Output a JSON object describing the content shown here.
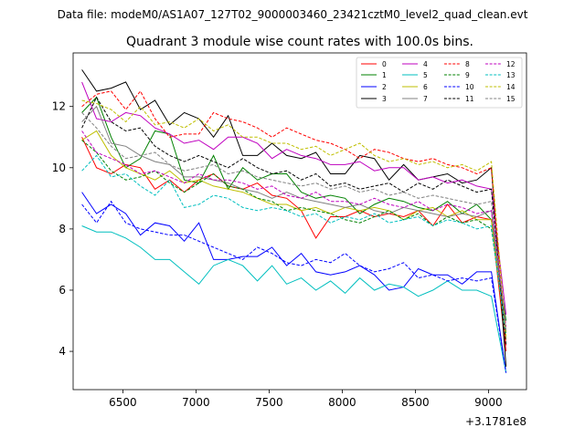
{
  "chart_data": {
    "type": "line",
    "suptitle": "Data file: modeM0/AS1A07_127T02_9000003460_23421cztM0_level2_quad_clean.evt",
    "title": "Quadrant 3 module wise count rates with 100.0s bins.",
    "xlabel": "",
    "ylabel": "",
    "x_offset_label": "+3.1781e8",
    "xlim": [
      6160,
      9260
    ],
    "ylim": [
      2.75,
      13.75
    ],
    "xticks": [
      6500,
      7000,
      7500,
      8000,
      8500,
      9000
    ],
    "yticks": [
      4,
      6,
      8,
      10,
      12
    ],
    "x": [
      6220,
      6320,
      6420,
      6520,
      6620,
      6720,
      6820,
      6920,
      7020,
      7120,
      7220,
      7320,
      7420,
      7520,
      7620,
      7720,
      7820,
      7920,
      8020,
      8120,
      8220,
      8320,
      8420,
      8520,
      8620,
      8720,
      8820,
      8920,
      9020,
      9120
    ],
    "legend_location": "upper right",
    "series": [
      {
        "name": "0",
        "color": "#ff0000",
        "dash": "solid",
        "values": [
          11.0,
          10.0,
          9.8,
          10.1,
          10.0,
          9.3,
          9.6,
          9.2,
          9.6,
          9.8,
          9.4,
          9.3,
          9.5,
          9.1,
          9.0,
          8.6,
          7.7,
          8.4,
          8.4,
          8.6,
          8.4,
          8.5,
          8.4,
          8.6,
          8.1,
          8.8,
          8.2,
          8.4,
          8.3,
          4.0
        ]
      },
      {
        "name": "1",
        "color": "#008000",
        "dash": "solid",
        "values": [
          11.8,
          12.3,
          11.0,
          10.0,
          10.3,
          11.2,
          11.1,
          9.6,
          9.5,
          10.4,
          9.3,
          10.0,
          9.6,
          9.8,
          9.8,
          9.2,
          9.0,
          9.1,
          9.0,
          8.5,
          8.8,
          9.0,
          8.9,
          8.7,
          8.6,
          8.9,
          8.5,
          8.8,
          8.3,
          5.0
        ]
      },
      {
        "name": "2",
        "color": "#0000ff",
        "dash": "solid",
        "values": [
          9.2,
          8.5,
          8.8,
          8.5,
          7.8,
          8.2,
          8.1,
          7.6,
          8.2,
          7.0,
          7.0,
          7.1,
          7.1,
          7.4,
          6.8,
          7.2,
          6.6,
          6.5,
          6.6,
          6.8,
          6.5,
          6.0,
          6.1,
          6.7,
          6.5,
          6.5,
          6.2,
          6.6,
          6.6,
          3.3
        ]
      },
      {
        "name": "3",
        "color": "#000000",
        "dash": "solid",
        "values": [
          13.2,
          12.5,
          12.6,
          12.8,
          11.9,
          12.2,
          11.4,
          11.8,
          11.6,
          11.0,
          11.7,
          10.4,
          10.4,
          10.8,
          10.4,
          10.3,
          10.5,
          9.8,
          9.8,
          10.4,
          10.3,
          9.6,
          10.1,
          9.6,
          9.7,
          9.8,
          9.5,
          9.6,
          10.0,
          3.5
        ]
      },
      {
        "name": "4",
        "color": "#bf00bf",
        "dash": "solid",
        "values": [
          12.8,
          11.6,
          11.5,
          11.8,
          11.7,
          11.3,
          11.1,
          10.8,
          10.9,
          10.6,
          11.0,
          11.0,
          10.8,
          10.3,
          10.6,
          10.4,
          10.3,
          10.1,
          10.1,
          10.2,
          9.9,
          10.0,
          10.0,
          9.6,
          9.7,
          9.5,
          9.6,
          9.4,
          9.3,
          5.2
        ]
      },
      {
        "name": "5",
        "color": "#00bfbf",
        "dash": "solid",
        "values": [
          8.1,
          7.9,
          7.9,
          7.7,
          7.4,
          7.0,
          7.0,
          6.6,
          6.2,
          6.8,
          7.0,
          6.8,
          6.3,
          6.8,
          6.2,
          6.4,
          6.0,
          6.3,
          5.9,
          6.4,
          6.0,
          6.2,
          6.1,
          5.8,
          6.0,
          6.3,
          6.0,
          6.0,
          5.8,
          3.3
        ]
      },
      {
        "name": "6",
        "color": "#bfbf00",
        "dash": "solid",
        "values": [
          10.9,
          11.2,
          10.4,
          10.0,
          9.8,
          9.6,
          9.9,
          9.5,
          9.6,
          9.4,
          9.3,
          9.2,
          9.0,
          8.8,
          8.8,
          8.6,
          8.7,
          8.5,
          8.7,
          8.6,
          8.7,
          8.6,
          8.3,
          8.6,
          8.7,
          8.4,
          8.6,
          8.3,
          8.3,
          4.4
        ]
      },
      {
        "name": "7",
        "color": "#808080",
        "dash": "solid",
        "values": [
          11.5,
          12.0,
          10.8,
          10.7,
          10.4,
          10.2,
          10.1,
          9.7,
          9.7,
          9.6,
          9.5,
          9.3,
          9.2,
          9.0,
          9.2,
          9.0,
          8.9,
          8.8,
          8.7,
          8.8,
          8.6,
          8.5,
          8.7,
          8.6,
          8.5,
          8.4,
          8.5,
          8.4,
          8.6,
          4.6
        ]
      },
      {
        "name": "8",
        "color": "#ff0000",
        "dash": "dashed",
        "values": [
          12.0,
          12.4,
          12.5,
          11.9,
          12.5,
          11.6,
          11.0,
          11.1,
          11.1,
          11.8,
          11.6,
          11.5,
          11.3,
          11.0,
          11.3,
          11.1,
          10.9,
          10.8,
          10.6,
          10.3,
          10.6,
          10.5,
          10.3,
          10.2,
          10.3,
          10.1,
          10.0,
          9.8,
          10.0,
          4.2
        ]
      },
      {
        "name": "9",
        "color": "#008000",
        "dash": "dashed",
        "values": [
          10.9,
          10.5,
          9.9,
          9.6,
          9.7,
          9.9,
          9.5,
          9.2,
          9.5,
          9.8,
          9.4,
          9.3,
          9.0,
          8.9,
          8.6,
          8.7,
          8.6,
          8.5,
          8.3,
          8.2,
          8.4,
          8.6,
          8.3,
          8.5,
          8.1,
          8.4,
          8.2,
          8.3,
          8.0,
          4.6
        ]
      },
      {
        "name": "10",
        "color": "#0000ff",
        "dash": "dashed",
        "values": [
          8.8,
          8.2,
          8.9,
          8.2,
          8.0,
          7.9,
          7.8,
          7.8,
          7.6,
          7.4,
          7.2,
          7.0,
          7.4,
          7.2,
          6.9,
          6.8,
          7.0,
          6.9,
          7.2,
          6.8,
          6.6,
          6.7,
          6.9,
          6.4,
          6.5,
          6.3,
          6.4,
          6.3,
          6.4,
          3.3
        ]
      },
      {
        "name": "11",
        "color": "#000000",
        "dash": "dashed",
        "values": [
          11.3,
          12.3,
          11.5,
          11.2,
          11.3,
          10.7,
          10.4,
          10.2,
          10.4,
          10.2,
          10.0,
          10.3,
          10.0,
          9.8,
          9.9,
          9.6,
          9.8,
          9.4,
          9.5,
          9.3,
          9.4,
          9.5,
          9.2,
          9.5,
          9.3,
          9.6,
          9.4,
          9.2,
          9.3,
          4.2
        ]
      },
      {
        "name": "12",
        "color": "#bf00bf",
        "dash": "dashed",
        "values": [
          11.2,
          10.5,
          10.3,
          10.1,
          9.8,
          9.9,
          9.7,
          9.5,
          9.8,
          9.6,
          9.6,
          9.5,
          9.3,
          9.4,
          9.1,
          9.0,
          9.2,
          8.9,
          8.9,
          8.8,
          9.0,
          8.8,
          8.7,
          8.9,
          8.6,
          8.8,
          8.7,
          8.5,
          8.6,
          4.8
        ]
      },
      {
        "name": "13",
        "color": "#00bfbf",
        "dash": "dashed",
        "values": [
          9.9,
          10.4,
          9.7,
          9.8,
          9.4,
          9.1,
          9.6,
          8.7,
          8.8,
          9.1,
          9.0,
          8.7,
          8.6,
          8.7,
          8.6,
          8.4,
          8.5,
          8.2,
          8.4,
          8.3,
          8.5,
          8.2,
          8.3,
          8.4,
          8.1,
          8.3,
          8.2,
          8.0,
          8.1,
          4.5
        ]
      },
      {
        "name": "14",
        "color": "#bfbf00",
        "dash": "dashed",
        "values": [
          12.2,
          12.1,
          11.9,
          11.5,
          12.0,
          11.4,
          11.5,
          11.3,
          11.6,
          11.2,
          11.4,
          11.0,
          11.0,
          10.8,
          10.8,
          10.6,
          10.7,
          10.4,
          10.6,
          10.8,
          10.4,
          10.2,
          10.3,
          10.1,
          10.2,
          10.0,
          10.1,
          9.9,
          10.2,
          4.5
        ]
      },
      {
        "name": "15",
        "color": "#808080",
        "dash": "dashed",
        "values": [
          11.8,
          11.3,
          10.7,
          10.3,
          10.4,
          10.5,
          10.1,
          9.9,
          10.0,
          10.1,
          9.8,
          9.9,
          9.7,
          9.6,
          9.5,
          9.4,
          9.5,
          9.3,
          9.4,
          9.2,
          9.3,
          9.1,
          9.2,
          9.0,
          9.1,
          9.0,
          8.9,
          8.8,
          8.9,
          4.7
        ]
      }
    ]
  }
}
